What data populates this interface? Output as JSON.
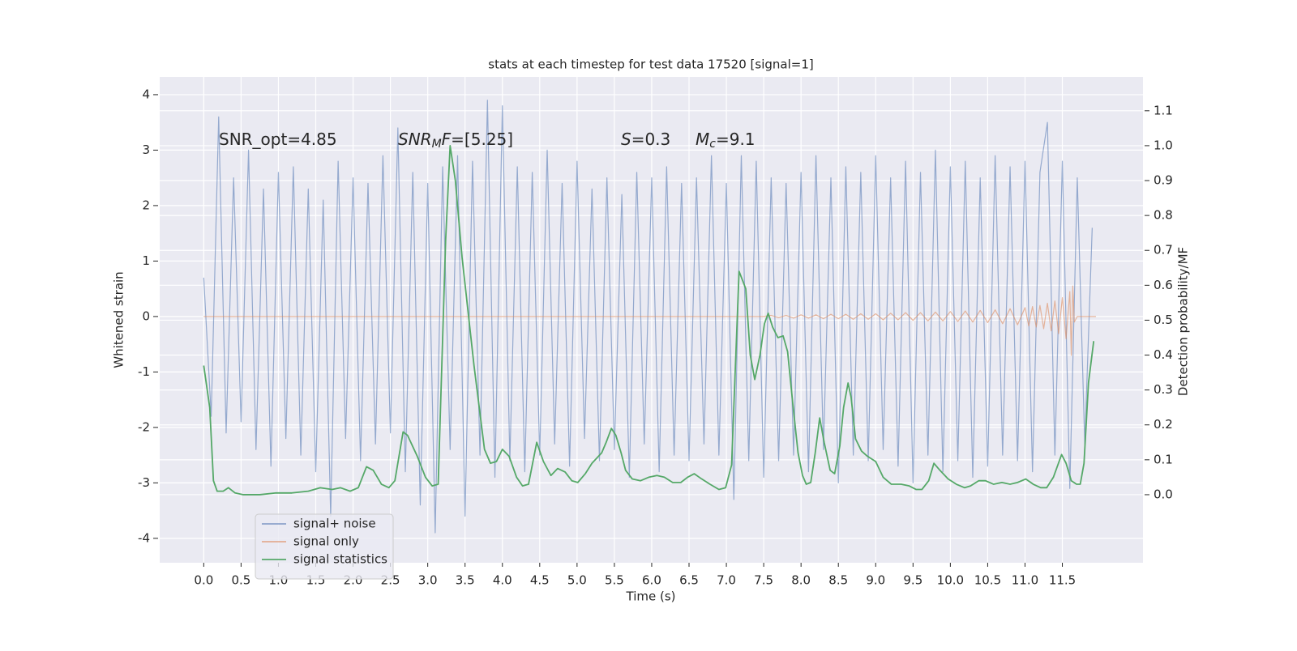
{
  "chart_data": {
    "type": "line",
    "title": "stats at each timestep for test data 17520 [signal=1]",
    "xlabel": "Time (s)",
    "ylabel": "Whitened strain",
    "y2label": "Detection probability/MF",
    "xlim": [
      -0.59,
      12.58
    ],
    "ylim": [
      -4.44,
      4.32
    ],
    "y2lim": [
      -0.195,
      1.197
    ],
    "xticks": [
      {
        "value": 0,
        "label": "0.0"
      },
      0.5,
      {
        "value": 1,
        "label": "1.0"
      },
      1.5,
      {
        "value": 2,
        "label": "2.0"
      },
      2.5,
      {
        "value": 3,
        "label": "3.0"
      },
      3.5,
      {
        "value": 4,
        "label": "4.0"
      },
      4.5,
      {
        "value": 5,
        "label": "5.0"
      },
      5.5,
      {
        "value": 6,
        "label": "6.0"
      },
      6.5,
      {
        "value": 7,
        "label": "7.0"
      },
      7.5,
      {
        "value": 8,
        "label": "8.0"
      },
      8.5,
      {
        "value": 9,
        "label": "9.0"
      },
      9.5,
      {
        "value": 10,
        "label": "10.0"
      },
      10.5,
      {
        "value": 11,
        "label": "11.0"
      },
      11.5
    ],
    "yticks": [
      -4,
      -3,
      -2,
      -1,
      0,
      1,
      2,
      3,
      4
    ],
    "y2ticks": [
      {
        "value": 0,
        "label": "0.0"
      },
      0.1,
      0.2,
      0.3,
      0.4,
      0.5,
      0.6,
      0.7,
      0.8,
      0.9,
      {
        "value": 1,
        "label": "1.0"
      },
      1.1
    ],
    "grid": true,
    "legend": "lower left",
    "annotations": [
      {
        "parts": [
          {
            "text": "SNR_opt=4.85"
          }
        ]
      },
      {
        "parts": [
          {
            "text": "SNR",
            "style": "italic"
          },
          {
            "text": "M",
            "style": "sub"
          },
          {
            "text": "F",
            "style": "italic"
          },
          {
            "text": "=[5.25]"
          }
        ]
      },
      {
        "parts": [
          {
            "text": "S",
            "style": "italic"
          },
          {
            "text": "=0.3"
          }
        ]
      },
      {
        "parts": [
          {
            "text": "M",
            "style": "italic"
          },
          {
            "text": "c",
            "style": "sub"
          },
          {
            "text": "=9.1"
          }
        ]
      }
    ],
    "series": [
      {
        "name": "signal+ noise",
        "color": "#4c72b0",
        "axis": "y",
        "x": [
          0.0,
          0.1,
          0.2,
          0.3,
          0.4,
          0.5,
          0.6,
          0.7,
          0.8,
          0.9,
          1.0,
          1.1,
          1.2,
          1.3,
          1.4,
          1.5,
          1.6,
          1.7,
          1.8,
          1.9,
          2.0,
          2.1,
          2.2,
          2.3,
          2.4,
          2.5,
          2.6,
          2.7,
          2.8,
          2.9,
          3.0,
          3.1,
          3.2,
          3.3,
          3.4,
          3.5,
          3.6,
          3.7,
          3.8,
          3.9,
          4.0,
          4.1,
          4.2,
          4.3,
          4.4,
          4.5,
          4.6,
          4.7,
          4.8,
          4.9,
          5.0,
          5.1,
          5.2,
          5.3,
          5.4,
          5.5,
          5.6,
          5.7,
          5.8,
          5.9,
          6.0,
          6.1,
          6.2,
          6.3,
          6.4,
          6.5,
          6.6,
          6.7,
          6.8,
          6.9,
          7.0,
          7.1,
          7.2,
          7.3,
          7.4,
          7.5,
          7.6,
          7.7,
          7.8,
          7.9,
          8.0,
          8.1,
          8.2,
          8.3,
          8.4,
          8.5,
          8.6,
          8.7,
          8.8,
          8.9,
          9.0,
          9.1,
          9.2,
          9.3,
          9.4,
          9.5,
          9.6,
          9.7,
          9.8,
          9.9,
          10.0,
          10.1,
          10.2,
          10.3,
          10.4,
          10.5,
          10.6,
          10.7,
          10.8,
          10.9,
          11.0,
          11.1,
          11.2,
          11.3,
          11.4,
          11.5,
          11.6,
          11.7,
          11.8,
          11.9
        ],
        "values": [
          0.7,
          -1.8,
          3.6,
          -2.1,
          2.5,
          -1.9,
          3.0,
          -2.4,
          2.3,
          -2.7,
          2.6,
          -2.2,
          2.7,
          -2.5,
          2.3,
          -2.8,
          2.1,
          -3.6,
          2.8,
          -2.2,
          2.5,
          -2.6,
          2.4,
          -2.3,
          2.9,
          -2.1,
          3.4,
          -2.8,
          2.6,
          -3.4,
          2.4,
          -3.9,
          2.7,
          -2.4,
          2.9,
          -3.6,
          2.8,
          -2.5,
          3.9,
          -2.9,
          3.8,
          -2.6,
          2.7,
          -2.8,
          2.6,
          -2.5,
          3.0,
          -2.3,
          2.4,
          -2.7,
          2.8,
          -2.2,
          2.3,
          -2.6,
          2.5,
          -2.4,
          2.2,
          -2.9,
          2.6,
          -2.3,
          2.5,
          -2.8,
          2.7,
          -2.5,
          2.4,
          -2.6,
          2.5,
          -2.3,
          2.9,
          -2.5,
          2.4,
          -3.3,
          2.9,
          -2.6,
          2.8,
          -2.9,
          2.5,
          -2.6,
          2.4,
          -2.5,
          2.6,
          -2.8,
          2.9,
          -2.4,
          2.5,
          -3.0,
          2.7,
          -2.5,
          2.6,
          -2.6,
          2.9,
          -2.4,
          2.5,
          -2.7,
          2.8,
          -3.0,
          2.6,
          -2.5,
          3.0,
          -2.8,
          2.7,
          -2.6,
          2.8,
          -2.9,
          2.5,
          -2.7,
          2.9,
          -2.5,
          2.7,
          -2.6,
          2.8,
          -2.8,
          2.6,
          3.5,
          -2.5,
          2.8,
          -3.1,
          2.5,
          -2.3,
          1.6
        ]
      },
      {
        "name": "signal only",
        "color": "#dd8452",
        "axis": "y",
        "x": [
          0.0,
          7.5,
          7.6,
          7.7,
          7.8,
          7.9,
          8.0,
          8.1,
          8.2,
          8.3,
          8.4,
          8.5,
          8.6,
          8.7,
          8.8,
          8.9,
          9.0,
          9.1,
          9.2,
          9.3,
          9.4,
          9.5,
          9.6,
          9.7,
          9.8,
          9.9,
          10.0,
          10.1,
          10.2,
          10.3,
          10.4,
          10.5,
          10.6,
          10.7,
          10.8,
          10.9,
          11.0,
          11.05,
          11.1,
          11.15,
          11.2,
          11.25,
          11.3,
          11.35,
          11.4,
          11.45,
          11.5,
          11.55,
          11.6,
          11.62,
          11.64,
          11.66,
          11.7,
          11.95
        ],
        "values": [
          0.0,
          0.0,
          0.02,
          -0.02,
          0.02,
          -0.03,
          0.03,
          -0.03,
          0.03,
          -0.04,
          0.04,
          -0.04,
          0.04,
          -0.05,
          0.05,
          -0.05,
          0.05,
          -0.06,
          0.06,
          -0.06,
          0.07,
          -0.07,
          0.07,
          -0.08,
          0.08,
          -0.08,
          0.09,
          -0.09,
          0.1,
          -0.1,
          0.11,
          -0.11,
          0.12,
          -0.13,
          0.14,
          -0.15,
          0.16,
          -0.17,
          0.18,
          -0.19,
          0.2,
          -0.22,
          0.24,
          -0.26,
          0.28,
          -0.31,
          0.34,
          -0.4,
          0.45,
          -0.7,
          0.55,
          -0.1,
          0.0,
          0.0
        ]
      },
      {
        "name": "signal statistics",
        "color": "#55a868",
        "axis": "y2",
        "x": [
          0,
          0.08,
          0.13,
          0.18,
          0.26,
          0.33,
          0.42,
          0.53,
          0.75,
          0.97,
          1.18,
          1.4,
          1.56,
          1.72,
          1.83,
          1.96,
          2.07,
          2.18,
          2.27,
          2.38,
          2.48,
          2.56,
          2.67,
          2.73,
          2.86,
          2.97,
          3.06,
          3.14,
          3.24,
          3.3,
          3.37,
          3.46,
          3.62,
          3.76,
          3.84,
          3.92,
          4.0,
          4.09,
          4.19,
          4.27,
          4.35,
          4.46,
          4.55,
          4.65,
          4.74,
          4.84,
          4.93,
          5.01,
          5.11,
          5.2,
          5.33,
          5.39,
          5.46,
          5.52,
          5.59,
          5.65,
          5.74,
          5.85,
          5.96,
          6.07,
          6.17,
          6.28,
          6.39,
          6.48,
          6.57,
          6.67,
          6.78,
          6.9,
          6.99,
          7.07,
          7.17,
          7.26,
          7.32,
          7.38,
          7.45,
          7.51,
          7.56,
          7.62,
          7.69,
          7.76,
          7.82,
          7.89,
          7.96,
          8.02,
          8.07,
          8.13,
          8.19,
          8.25,
          8.31,
          8.39,
          8.45,
          8.52,
          8.57,
          8.63,
          8.67,
          8.73,
          8.81,
          8.89,
          9.0,
          9.1,
          9.21,
          9.34,
          9.45,
          9.54,
          9.62,
          9.71,
          9.78,
          9.86,
          9.97,
          10.08,
          10.19,
          10.27,
          10.38,
          10.47,
          10.58,
          10.69,
          10.8,
          10.9,
          11.01,
          11.11,
          11.21,
          11.29,
          11.38,
          11.49,
          11.55,
          11.62,
          11.69,
          11.74,
          11.79,
          11.85,
          11.92
        ],
        "values": [
          0.37,
          0.25,
          0.04,
          0.01,
          0.01,
          0.02,
          0.005,
          0.0,
          0.0,
          0.005,
          0.005,
          0.01,
          0.02,
          0.015,
          0.02,
          0.01,
          0.02,
          0.08,
          0.07,
          0.03,
          0.02,
          0.04,
          0.18,
          0.17,
          0.11,
          0.05,
          0.025,
          0.03,
          0.73,
          1.0,
          0.9,
          0.68,
          0.37,
          0.13,
          0.09,
          0.095,
          0.13,
          0.11,
          0.05,
          0.025,
          0.03,
          0.15,
          0.095,
          0.055,
          0.075,
          0.065,
          0.04,
          0.035,
          0.06,
          0.09,
          0.12,
          0.15,
          0.19,
          0.17,
          0.12,
          0.07,
          0.045,
          0.04,
          0.05,
          0.055,
          0.05,
          0.035,
          0.035,
          0.05,
          0.06,
          0.045,
          0.03,
          0.015,
          0.02,
          0.085,
          0.64,
          0.59,
          0.4,
          0.33,
          0.4,
          0.49,
          0.52,
          0.48,
          0.45,
          0.455,
          0.41,
          0.26,
          0.12,
          0.055,
          0.03,
          0.035,
          0.12,
          0.22,
          0.15,
          0.07,
          0.06,
          0.14,
          0.25,
          0.32,
          0.28,
          0.16,
          0.125,
          0.11,
          0.095,
          0.05,
          0.03,
          0.03,
          0.025,
          0.015,
          0.015,
          0.04,
          0.09,
          0.07,
          0.045,
          0.03,
          0.02,
          0.025,
          0.04,
          0.04,
          0.03,
          0.035,
          0.03,
          0.035,
          0.045,
          0.03,
          0.02,
          0.02,
          0.05,
          0.115,
          0.09,
          0.04,
          0.03,
          0.03,
          0.09,
          0.32,
          0.44
        ]
      }
    ]
  }
}
